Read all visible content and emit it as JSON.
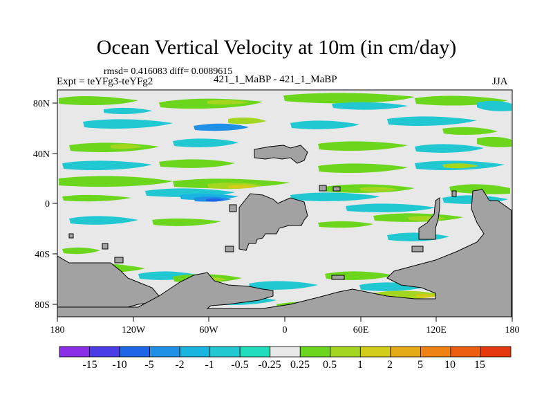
{
  "header": {
    "title": "Ocean Vertical Velocity at 10m (in cm/day)",
    "stats": "rmsd= 0.416083 diff= 0.0089615",
    "experiment": "Expt = teYFg3-teYFg2",
    "center_label": "421_1_MaBP - 421_1_MaBP",
    "season": "JJA"
  },
  "map": {
    "x_ticks": [
      "180",
      "120W",
      "60W",
      "0",
      "60E",
      "120E",
      "180"
    ],
    "y_ticks": [
      "80N",
      "40N",
      "0",
      "40S",
      "80S"
    ],
    "lon_range": [
      -180,
      180
    ],
    "lat_range": [
      -90,
      90
    ],
    "background_color": "#e8e8e8",
    "land_color": "#a2a2a2"
  },
  "colorbar": {
    "labels": [
      "-15",
      "-10",
      "-5",
      "-2",
      "-1",
      "-0.5",
      "-0.25",
      "0.25",
      "0.5",
      "1",
      "2",
      "5",
      "10",
      "15"
    ],
    "colors": [
      "#8b2fe6",
      "#4a3de6",
      "#1e66e6",
      "#1f90e6",
      "#19b4e0",
      "#21c8d2",
      "#22dcbe",
      "#e8e8e8",
      "#6cd61c",
      "#a4d620",
      "#d2cc1a",
      "#e4aa16",
      "#ee8212",
      "#ee5e10",
      "#e6380e"
    ]
  }
}
